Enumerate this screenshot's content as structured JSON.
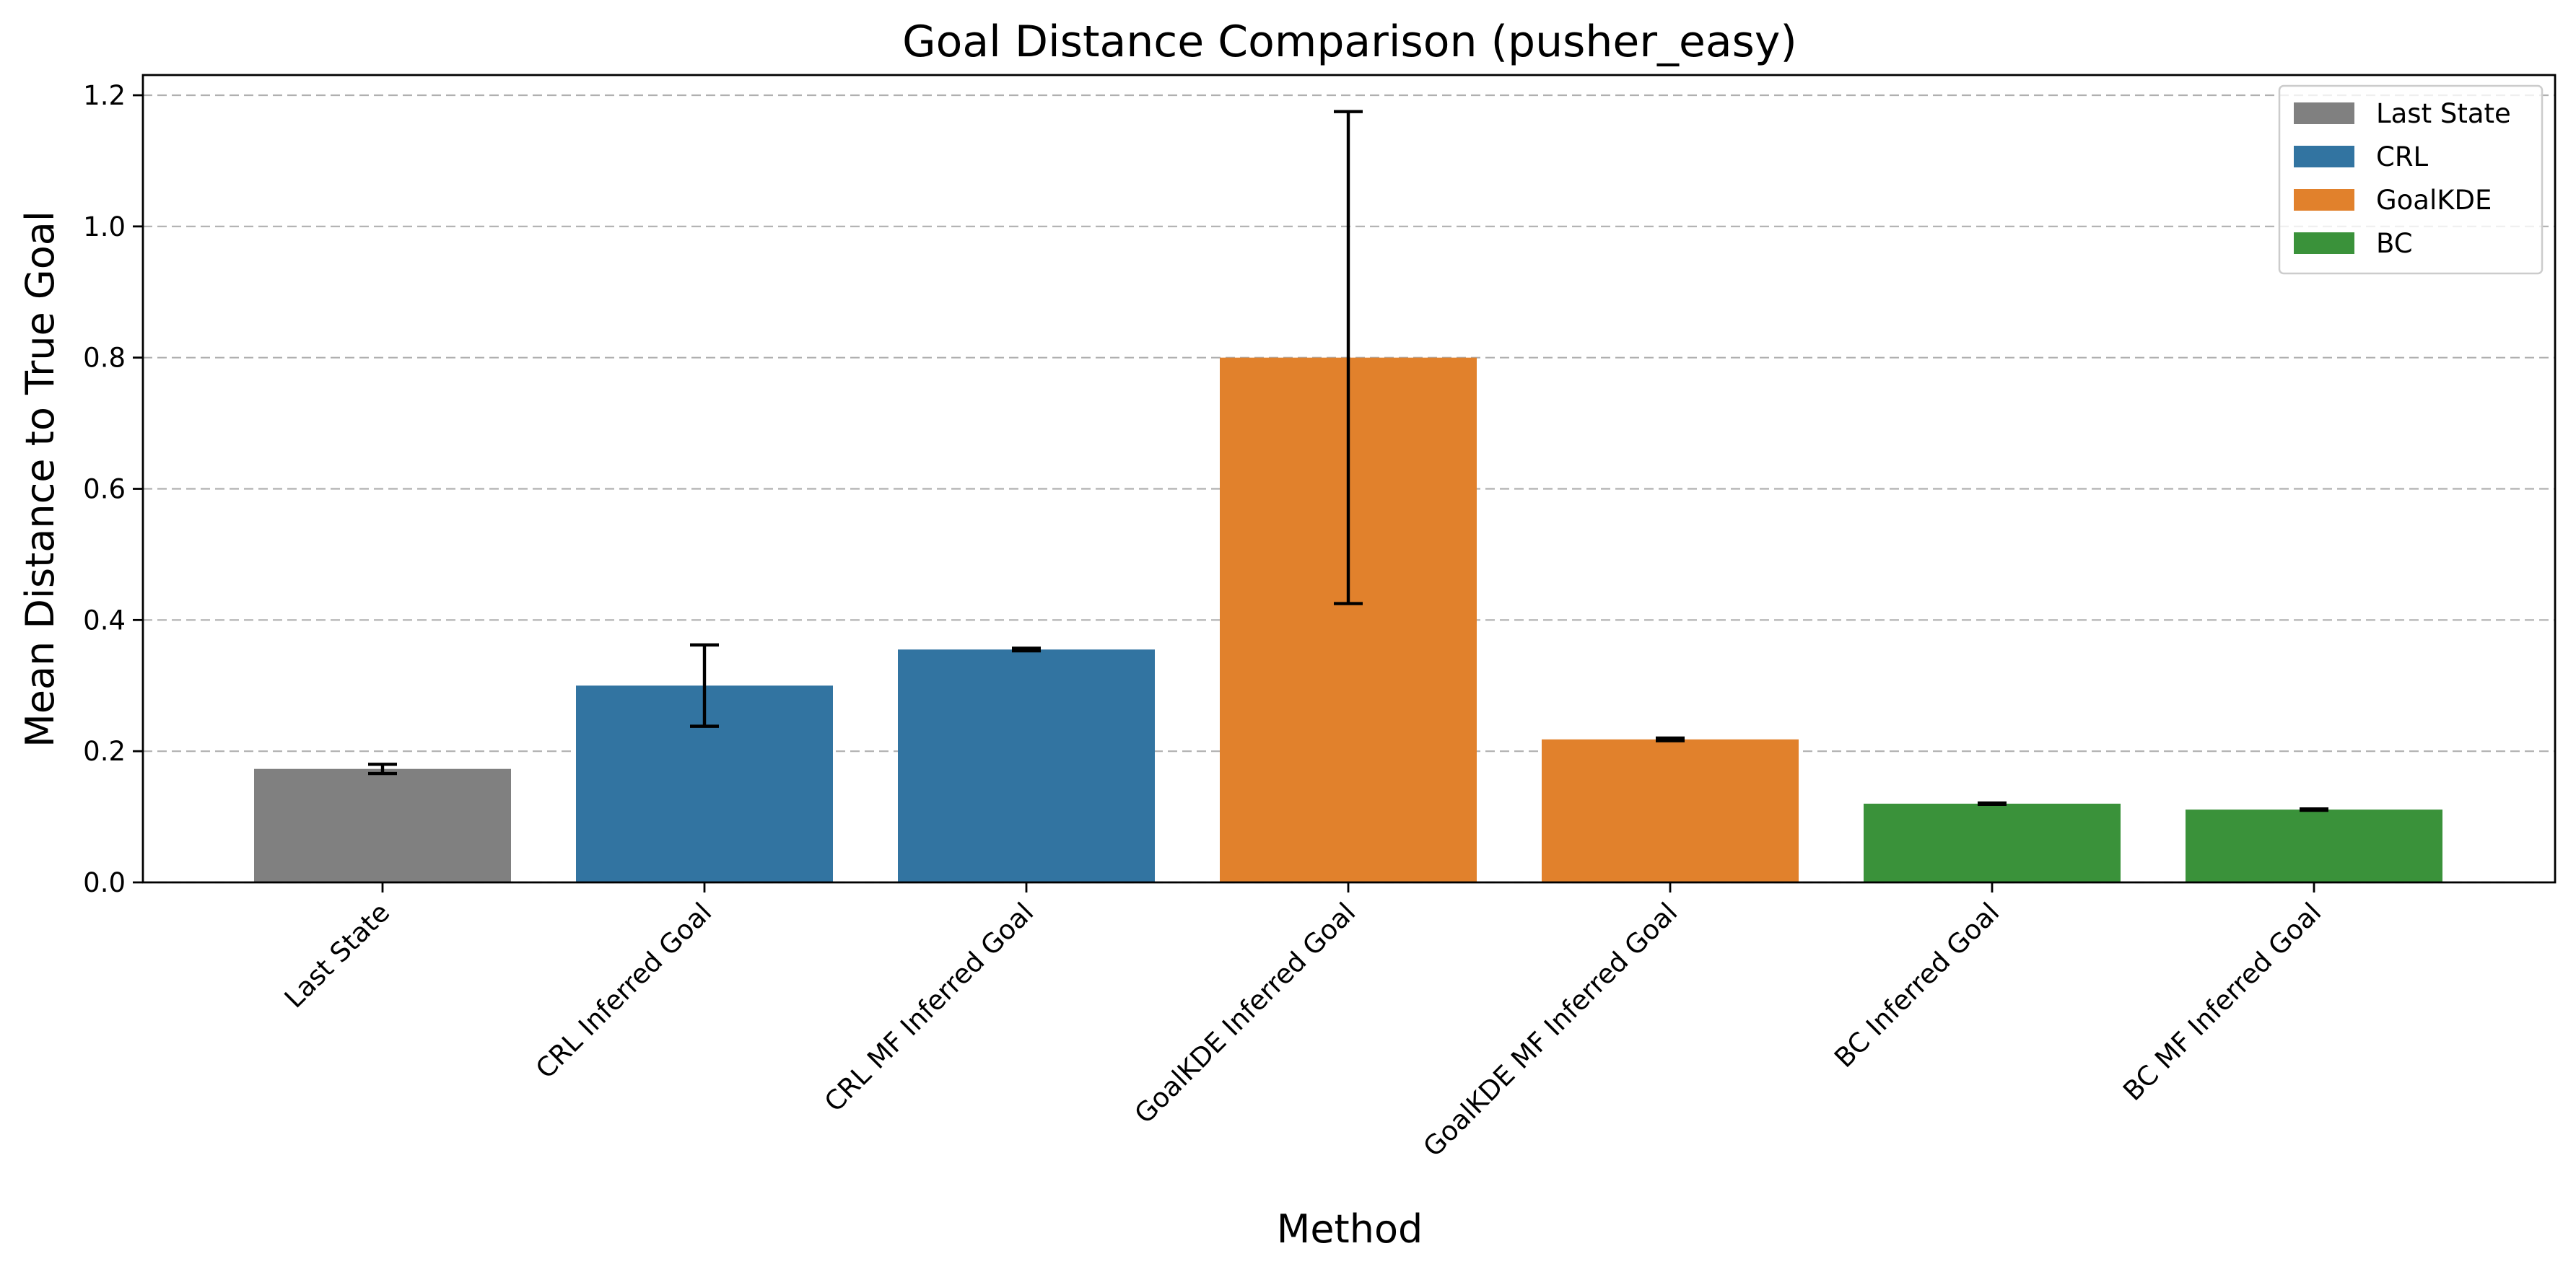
{
  "chart_data": {
    "type": "bar",
    "title": "Goal Distance Comparison (pusher_easy)",
    "xlabel": "Method",
    "ylabel": "Mean Distance to True Goal",
    "ylim": [
      0,
      1.23
    ],
    "yticks": [
      0.0,
      0.2,
      0.4,
      0.6,
      0.8,
      1.0,
      1.2
    ],
    "ytick_labels": [
      "0.0",
      "0.2",
      "0.4",
      "0.6",
      "0.8",
      "1.0",
      "1.2"
    ],
    "grid": "y-dashed",
    "legend_position": "top-right",
    "categories": [
      "Last State",
      "CRL Inferred Goal",
      "CRL MF Inferred Goal",
      "GoalKDE Inferred Goal",
      "GoalKDE MF Inferred Goal",
      "BC Inferred Goal",
      "BC MF Inferred Goal"
    ],
    "values": [
      0.173,
      0.3,
      0.355,
      0.8,
      0.218,
      0.12,
      0.111
    ],
    "errors": [
      0.007,
      0.062,
      0.002,
      0.375,
      0.002,
      0.001,
      0.001
    ],
    "bar_groups": [
      "Last State",
      "CRL",
      "CRL",
      "GoalKDE",
      "GoalKDE",
      "BC",
      "BC"
    ],
    "legend": [
      {
        "label": "Last State",
        "color": "#808080"
      },
      {
        "label": "CRL",
        "color": "#3274a1"
      },
      {
        "label": "GoalKDE",
        "color": "#e1812c"
      },
      {
        "label": "BC",
        "color": "#3a923a"
      }
    ]
  }
}
